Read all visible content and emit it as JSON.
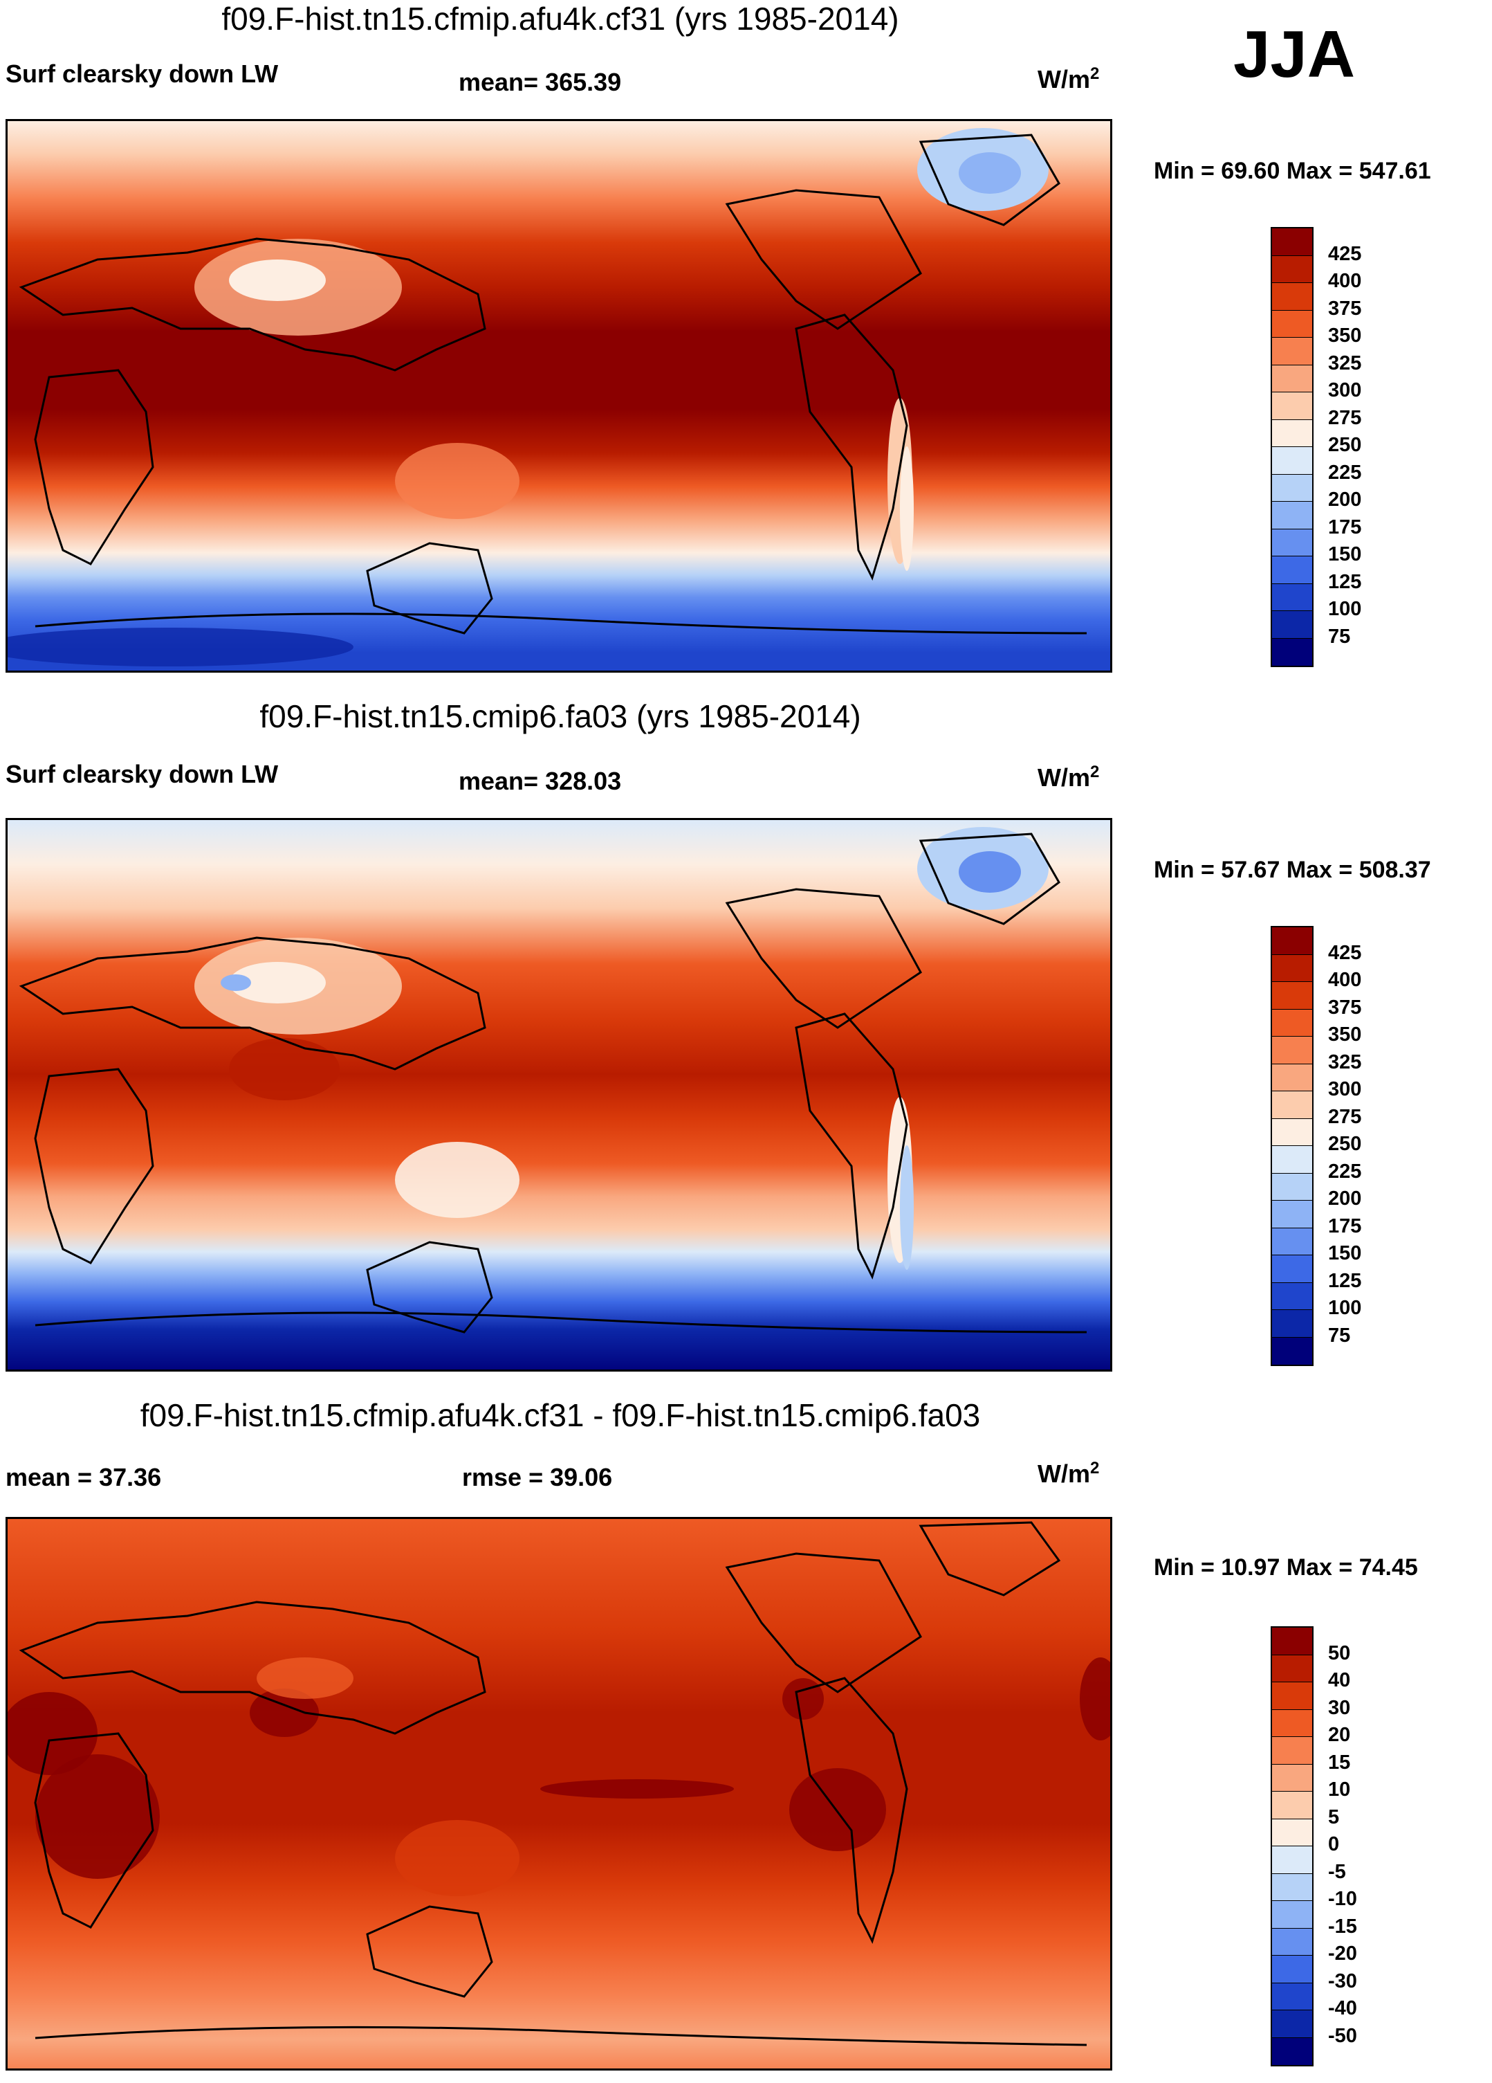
{
  "season": "JJA",
  "units_base": "W/m",
  "units_exp": "2",
  "panels": [
    {
      "id": "top",
      "title": "f09.F-hist.tn15.cfmip.afu4k.cf31 (yrs 1985-2014)",
      "left_label": "Surf clearsky down LW",
      "center_label": "mean= 365.39",
      "minmax": "Min =  69.60 Max = 547.61",
      "scale": "abs"
    },
    {
      "id": "mid",
      "title": "f09.F-hist.tn15.cmip6.fa03 (yrs 1985-2014)",
      "left_label": "Surf clearsky down LW",
      "center_label": "mean= 328.03",
      "minmax": "Min =  57.67 Max = 508.37",
      "scale": "abs"
    },
    {
      "id": "diff",
      "title": "f09.F-hist.tn15.cfmip.afu4k.cf31 - f09.F-hist.tn15.cmip6.fa03",
      "left_label": "mean =  37.36",
      "center_label": "rmse =  39.06",
      "minmax": "Min =  10.97 Max =  74.45",
      "scale": "diff"
    }
  ],
  "colorbars": {
    "abs": {
      "labels": [
        "425",
        "400",
        "375",
        "350",
        "325",
        "300",
        "275",
        "250",
        "225",
        "200",
        "175",
        "150",
        "125",
        "100",
        "75"
      ],
      "colors": [
        "#8b0000",
        "#b81c00",
        "#d93a0a",
        "#ee5a24",
        "#f7804f",
        "#f9a77f",
        "#fcccad",
        "#fdeee2",
        "#dceaf9",
        "#b6d2f7",
        "#8eb3f5",
        "#6690f0",
        "#3d69e6",
        "#1f45cc",
        "#0c27a8",
        "#00007a"
      ]
    },
    "diff": {
      "labels": [
        "50",
        "40",
        "30",
        "20",
        "15",
        "10",
        "5",
        "0",
        "-5",
        "-10",
        "-15",
        "-20",
        "-30",
        "-40",
        "-50"
      ],
      "colors": [
        "#8b0000",
        "#b81c00",
        "#d93a0a",
        "#ee5a24",
        "#f7804f",
        "#f9a77f",
        "#fcccad",
        "#fdeee2",
        "#dceaf9",
        "#b6d2f7",
        "#8eb3f5",
        "#6690f0",
        "#3d69e6",
        "#1f45cc",
        "#0c27a8",
        "#00007a"
      ]
    }
  }
}
